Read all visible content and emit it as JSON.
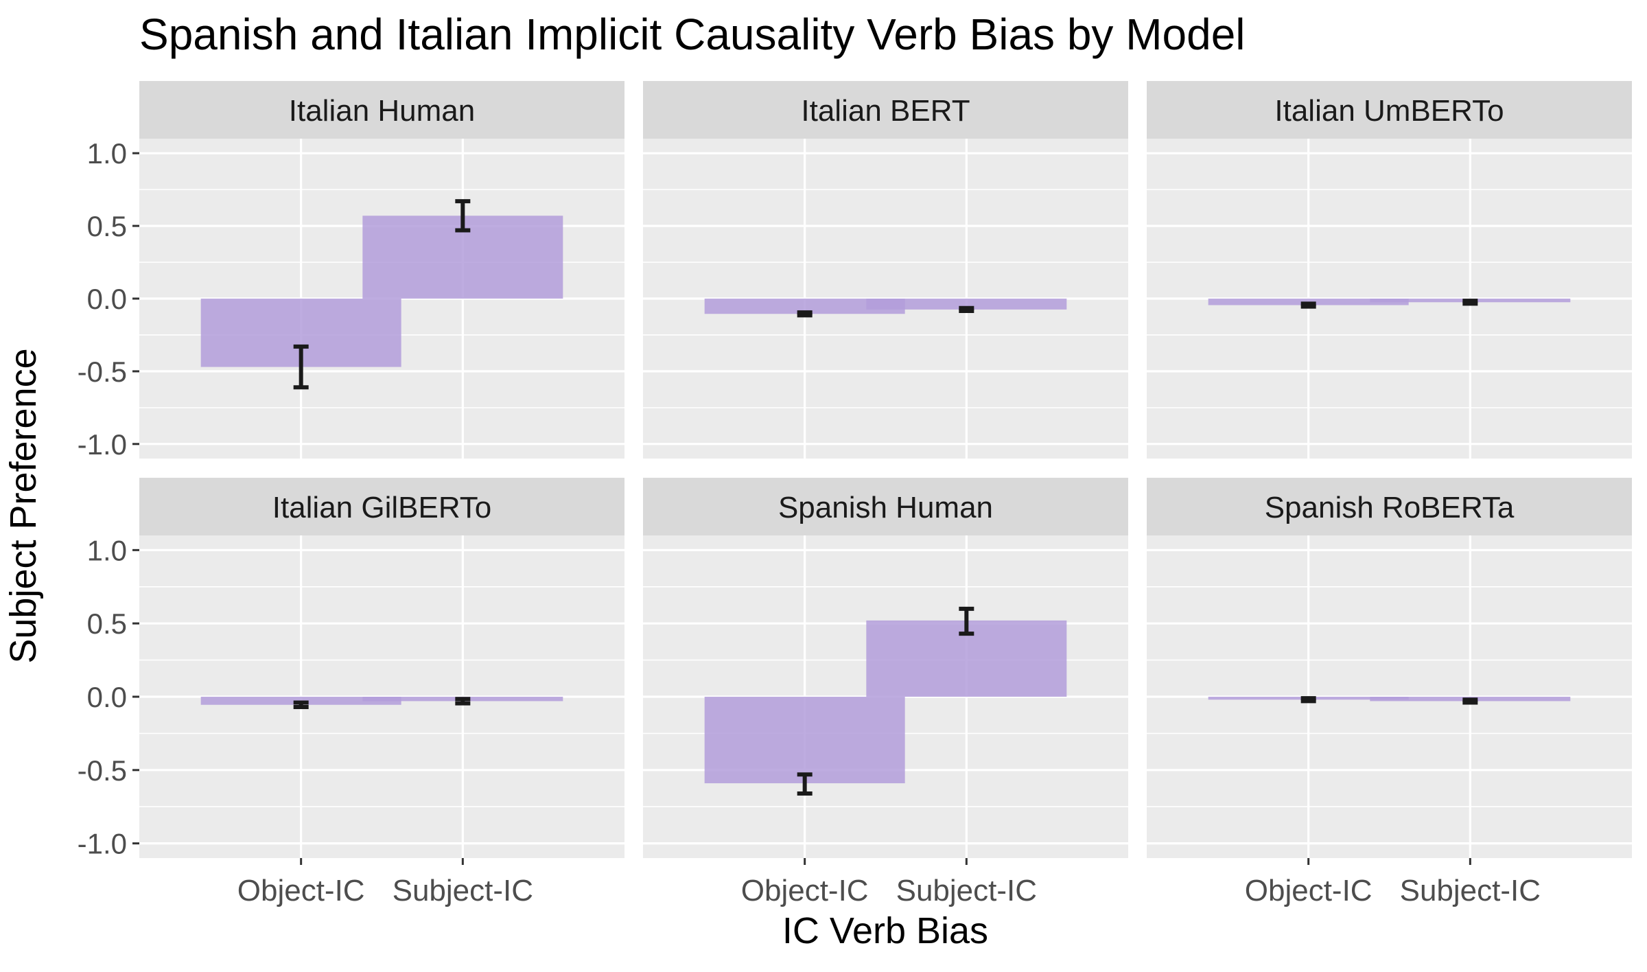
{
  "chart_data": {
    "type": "bar",
    "title": "Spanish and Italian Implicit Causality Verb Bias by Model",
    "xlabel": "IC Verb Bias",
    "ylabel": "Subject Preference",
    "categories": [
      "Object-IC",
      "Subject-IC"
    ],
    "ylim": [
      -1.1,
      1.1
    ],
    "yticks": [
      1.0,
      0.5,
      0.0,
      -0.5,
      -1.0
    ],
    "ytick_labels": [
      "1.0",
      "0.5",
      "0.0",
      "-0.5",
      "-1.0"
    ],
    "grid": true,
    "legend": "none",
    "facets": [
      {
        "name": "Italian Human",
        "values": [
          -0.47,
          0.57
        ],
        "err_low": [
          -0.61,
          0.47
        ],
        "err_high": [
          -0.33,
          0.67
        ]
      },
      {
        "name": "Italian BERT",
        "values": [
          -0.105,
          -0.075
        ],
        "err_low": [
          -0.115,
          -0.085
        ],
        "err_high": [
          -0.095,
          -0.065
        ]
      },
      {
        "name": "Italian UmBERTo",
        "values": [
          -0.045,
          -0.025
        ],
        "err_low": [
          -0.055,
          -0.035
        ],
        "err_high": [
          -0.035,
          -0.015
        ]
      },
      {
        "name": "Italian GilBERTo",
        "values": [
          -0.055,
          -0.03
        ],
        "err_low": [
          -0.07,
          -0.045
        ],
        "err_high": [
          -0.04,
          -0.015
        ]
      },
      {
        "name": "Spanish Human",
        "values": [
          -0.59,
          0.52
        ],
        "err_low": [
          -0.66,
          0.43
        ],
        "err_high": [
          -0.53,
          0.6
        ]
      },
      {
        "name": "Spanish RoBERTa",
        "values": [
          -0.02,
          -0.03
        ],
        "err_low": [
          -0.03,
          -0.04
        ],
        "err_high": [
          -0.01,
          -0.02
        ]
      }
    ],
    "colors": {
      "bar": "#b39ddb",
      "panel_bg": "#ebebeb",
      "strip_bg": "#d9d9d9",
      "grid": "#ffffff",
      "errorbar": "#1a1a1a"
    }
  }
}
